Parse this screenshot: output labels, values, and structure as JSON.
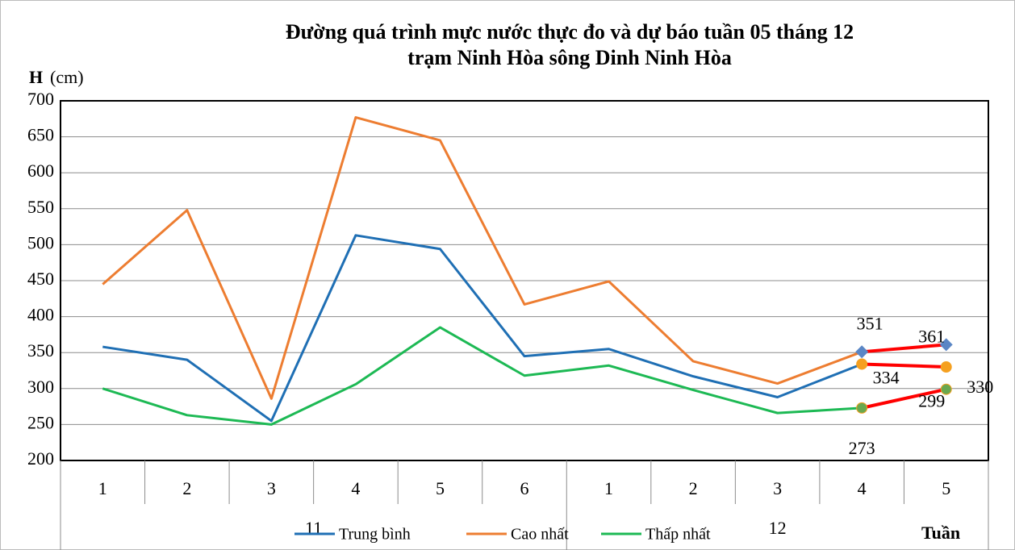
{
  "chart_data": {
    "type": "line",
    "title_lines": [
      "Đường quá trình mực nước thực đo và dự báo tuần 05 tháng 12",
      "trạm Ninh Hòa sông Dinh Ninh Hòa"
    ],
    "y_axis_label": "H",
    "y_axis_unit": "(cm)",
    "x_axis_label": "Tuần",
    "categories": [
      "1",
      "2",
      "3",
      "4",
      "5",
      "6",
      "1",
      "2",
      "3",
      "4",
      "5"
    ],
    "groups": [
      {
        "label": "11",
        "span": 6
      },
      {
        "label": "12",
        "span": 5
      }
    ],
    "ylim": [
      200,
      700
    ],
    "yticks": [
      200,
      250,
      300,
      350,
      400,
      450,
      500,
      550,
      600,
      650,
      700
    ],
    "grid": true,
    "series": [
      {
        "name": "Trung bình",
        "color": "#1f6fb4",
        "values": [
          358,
          340,
          255,
          513,
          494,
          345,
          355,
          317,
          288,
          334,
          null
        ]
      },
      {
        "name": "Cao nhất",
        "color": "#ed7d31",
        "values": [
          445,
          548,
          286,
          677,
          645,
          417,
          449,
          338,
          307,
          351,
          null
        ]
      },
      {
        "name": "Thấp nhất",
        "color": "#1db954",
        "values": [
          300,
          263,
          250,
          306,
          385,
          318,
          332,
          298,
          266,
          273,
          null
        ]
      },
      {
        "color": "#ff0000",
        "marker": "diamond",
        "marker_color": "#5a86c5",
        "data_labels": true,
        "values": [
          null,
          null,
          null,
          null,
          null,
          null,
          null,
          null,
          null,
          351,
          361
        ]
      },
      {
        "color": "#ff0000",
        "marker": "circle",
        "marker_color": "#f5a020",
        "data_labels": true,
        "values": [
          null,
          null,
          null,
          null,
          null,
          null,
          null,
          null,
          null,
          334,
          330
        ]
      },
      {
        "color": "#ff0000",
        "marker": "circle",
        "marker_color": "#6aa84f",
        "data_labels": true,
        "values": [
          null,
          null,
          null,
          null,
          null,
          null,
          null,
          null,
          null,
          273,
          299
        ]
      }
    ]
  }
}
